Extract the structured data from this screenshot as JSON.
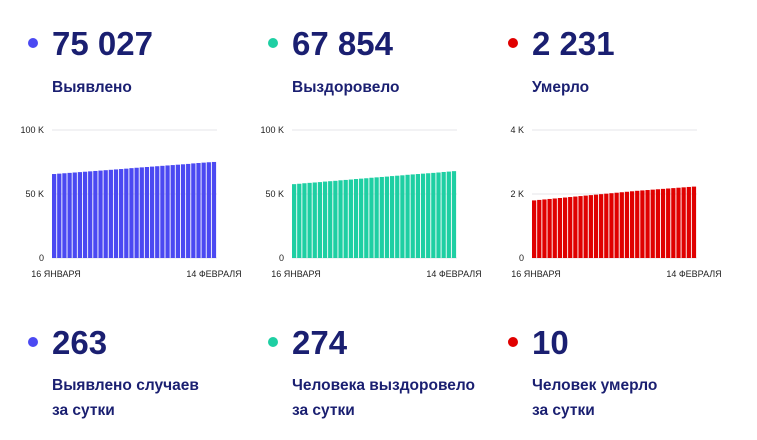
{
  "totals": [
    {
      "value": "75 027",
      "label": "Выявлено",
      "color": "#4b49f2"
    },
    {
      "value": "67 854",
      "label": "Выздоровело",
      "color": "#1ecfa3"
    },
    {
      "value": "2 231",
      "label": "Умерло",
      "color": "#e00000"
    }
  ],
  "daily": [
    {
      "value": "263",
      "label_line1": "Выявлено случаев",
      "label_line2": "за сутки",
      "color": "#4b49f2"
    },
    {
      "value": "274",
      "label_line1": "Человека выздоровело",
      "label_line2": "за сутки",
      "color": "#1ecfa3"
    },
    {
      "value": "10",
      "label_line1": "Человек умерло",
      "label_line2": "за сутки",
      "color": "#e00000"
    }
  ],
  "chart_data": [
    {
      "type": "bar",
      "x_start_label": "16 ЯНВАРЯ",
      "x_end_label": "14 ФЕВРАЛЯ",
      "y_ticks": [
        "0",
        "50 K",
        "100 K"
      ],
      "ylim": [
        0,
        100000
      ],
      "color": "#4b49f2",
      "values": [
        65600,
        65900,
        66200,
        66500,
        66800,
        67100,
        67400,
        67700,
        68000,
        68300,
        68600,
        68900,
        69200,
        69500,
        69800,
        70200,
        70500,
        70800,
        71100,
        71400,
        71700,
        72000,
        72300,
        72600,
        72900,
        73200,
        73500,
        73900,
        74200,
        74500,
        74800,
        75027
      ]
    },
    {
      "type": "bar",
      "x_start_label": "16 ЯНВАРЯ",
      "x_end_label": "14 ФЕВРАЛЯ",
      "y_ticks": [
        "0",
        "50 K",
        "100 K"
      ],
      "ylim": [
        0,
        100000
      ],
      "color": "#1ecfa3",
      "values": [
        57700,
        58000,
        58400,
        58700,
        59000,
        59300,
        59700,
        60000,
        60300,
        60700,
        61000,
        61300,
        61700,
        62000,
        62300,
        62700,
        63000,
        63300,
        63600,
        64000,
        64300,
        64600,
        65000,
        65300,
        65600,
        65900,
        66200,
        66500,
        66800,
        67200,
        67500,
        67854
      ]
    },
    {
      "type": "bar",
      "x_start_label": "16 ЯНВАРЯ",
      "x_end_label": "14 ФЕВРАЛЯ",
      "y_ticks": [
        "0",
        "2 K",
        "4 K"
      ],
      "ylim": [
        0,
        4000
      ],
      "color": "#e00000",
      "values": [
        1800,
        1815,
        1830,
        1845,
        1860,
        1875,
        1890,
        1905,
        1920,
        1935,
        1950,
        1965,
        1980,
        1995,
        2010,
        2025,
        2040,
        2055,
        2070,
        2085,
        2100,
        2112,
        2124,
        2136,
        2148,
        2160,
        2172,
        2184,
        2196,
        2208,
        2220,
        2231
      ]
    }
  ]
}
